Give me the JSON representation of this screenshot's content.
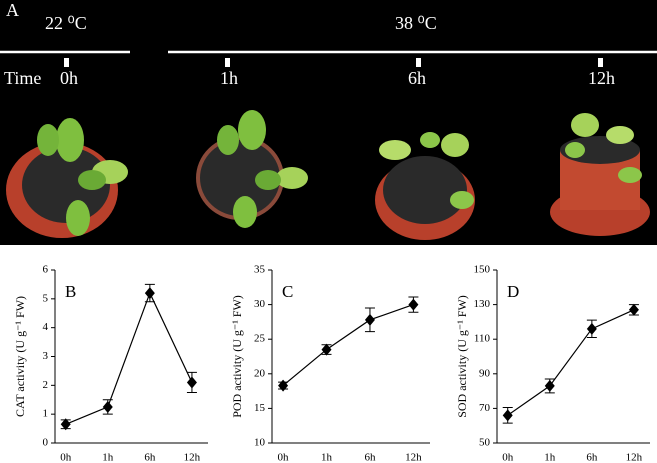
{
  "panel_a": {
    "label": "A",
    "temp_left": "22 ⁰C",
    "temp_right": "38 ⁰C",
    "time_label": "Time",
    "times": [
      "0h",
      "1h",
      "6h",
      "12h"
    ]
  },
  "chart_data": [
    {
      "type": "line",
      "label": "B",
      "y_label": "CAT activity (U g⁻¹ FW)",
      "categories": [
        "0h",
        "1h",
        "6h",
        "12h"
      ],
      "series": [
        {
          "color": "#000000",
          "values": [
            0.65,
            1.25,
            5.2,
            2.1
          ],
          "errors": [
            0.15,
            0.25,
            0.3,
            0.35
          ]
        }
      ],
      "ylim": [
        0,
        6
      ],
      "yticks": [
        0,
        1,
        2,
        3,
        4,
        5,
        6
      ]
    },
    {
      "type": "line",
      "label": "C",
      "y_label": "POD activity (U g⁻¹ FW)",
      "categories": [
        "0h",
        "1h",
        "6h",
        "12h"
      ],
      "series": [
        {
          "color": "#000000",
          "values": [
            18.3,
            23.5,
            27.8,
            30
          ],
          "errors": [
            0.5,
            0.7,
            1.7,
            1.1
          ]
        }
      ],
      "ylim": [
        10,
        35
      ],
      "yticks": [
        10,
        15,
        20,
        25,
        30,
        35
      ]
    },
    {
      "type": "line",
      "label": "D",
      "y_label": "SOD activity (U g⁻¹ FW)",
      "categories": [
        "0h",
        "1h",
        "6h",
        "12h"
      ],
      "series": [
        {
          "color": "#000000",
          "values": [
            66,
            83,
            116,
            127
          ],
          "errors": [
            4.5,
            4,
            5,
            3
          ]
        }
      ],
      "ylim": [
        50,
        150
      ],
      "yticks": [
        50,
        70,
        90,
        110,
        130,
        150
      ]
    }
  ]
}
